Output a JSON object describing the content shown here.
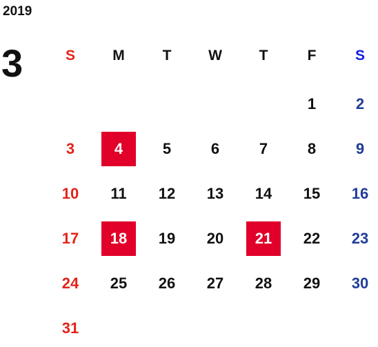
{
  "calendar": {
    "year": "2019",
    "month": "3",
    "weekdays": [
      "S",
      "M",
      "T",
      "W",
      "T",
      "F",
      "S"
    ],
    "weeks": [
      [
        null,
        null,
        null,
        null,
        null,
        1,
        2
      ],
      [
        3,
        4,
        5,
        6,
        7,
        8,
        9
      ],
      [
        10,
        11,
        12,
        13,
        14,
        15,
        16
      ],
      [
        17,
        18,
        19,
        20,
        21,
        22,
        23
      ],
      [
        24,
        25,
        26,
        27,
        28,
        29,
        30
      ],
      [
        31,
        null,
        null,
        null,
        null,
        null,
        null
      ]
    ],
    "marked_days": [
      4,
      18,
      21
    ]
  }
}
